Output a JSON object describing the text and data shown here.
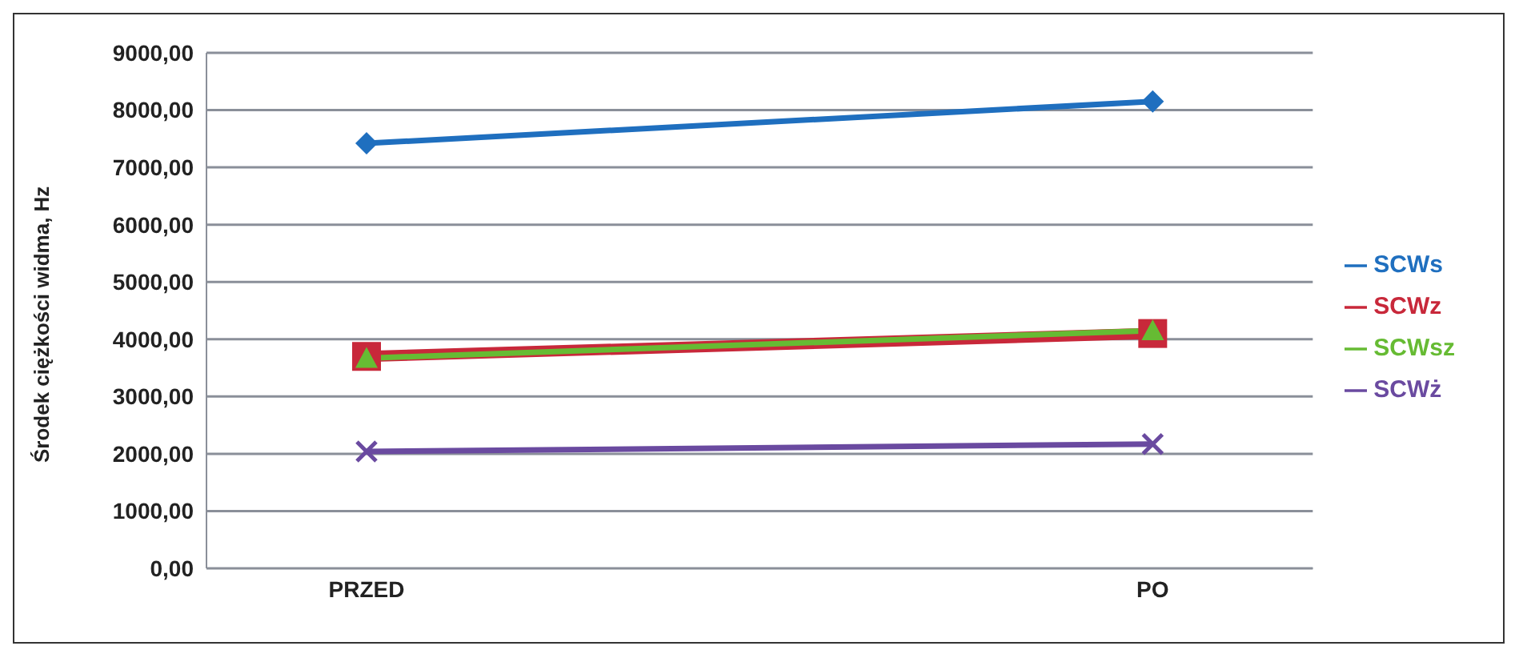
{
  "chart_data": {
    "type": "line",
    "ylabel": "Środek ciężkości widma, Hz",
    "categories": [
      "PRZED",
      "PO"
    ],
    "series": [
      {
        "name": "SCWs",
        "color": "#1f6fbf",
        "marker": "diamond",
        "values": [
          7420,
          8150
        ]
      },
      {
        "name": "SCWz",
        "color": "#c8283a",
        "marker": "square",
        "values": [
          3700,
          4100
        ]
      },
      {
        "name": "SCWsz",
        "color": "#66bb33",
        "marker": "triangle",
        "values": [
          3670,
          4150
        ]
      },
      {
        "name": "SCWż",
        "color": "#6a4aa0",
        "marker": "cross",
        "values": [
          2040,
          2170
        ]
      }
    ],
    "ylim": [
      0,
      9000
    ],
    "yticks": [
      {
        "value": 0,
        "label": "0,00"
      },
      {
        "value": 1000,
        "label": "1000,00"
      },
      {
        "value": 2000,
        "label": "2000,00"
      },
      {
        "value": 3000,
        "label": "3000,00"
      },
      {
        "value": 4000,
        "label": "4000,00"
      },
      {
        "value": 5000,
        "label": "5000,00"
      },
      {
        "value": 6000,
        "label": "6000,00"
      },
      {
        "value": 7000,
        "label": "7000,00"
      },
      {
        "value": 8000,
        "label": "8000,00"
      },
      {
        "value": 9000,
        "label": "9000,00"
      }
    ],
    "grid": "y",
    "legend": "right"
  }
}
